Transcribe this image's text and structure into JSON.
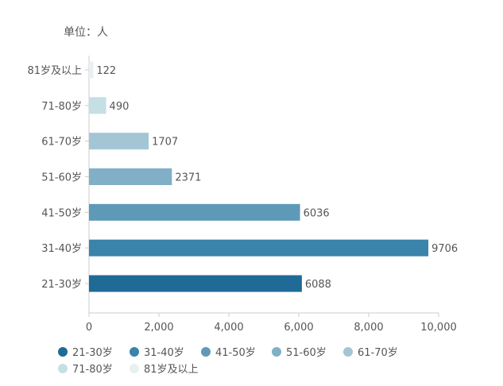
{
  "unit_label": "单位：人",
  "chart_data": {
    "type": "bar",
    "orientation": "horizontal",
    "categories": [
      "21-30岁",
      "31-40岁",
      "41-50岁",
      "51-60岁",
      "61-70岁",
      "71-80岁",
      "81岁及以上"
    ],
    "values": [
      6088,
      9706,
      6036,
      2371,
      1707,
      490,
      122
    ],
    "colors": [
      "#1f6a97",
      "#3a83aa",
      "#5f99b8",
      "#81afc8",
      "#a3c6d5",
      "#c6dfe4",
      "#e7f1f2"
    ],
    "xlim": [
      0,
      10000
    ],
    "xticks": [
      0,
      2000,
      4000,
      6000,
      8000,
      10000
    ],
    "xtick_labels": [
      "0",
      "2,000",
      "4,000",
      "6,000",
      "8,000",
      "10,000"
    ],
    "data_labels": [
      "6088",
      "9706",
      "6036",
      "2371",
      "1707",
      "490",
      "122"
    ],
    "legend": {
      "position": "bottom",
      "entries": [
        "21-30岁",
        "31-40岁",
        "41-50岁",
        "51-60岁",
        "61-70岁",
        "71-80岁",
        "81岁及以上"
      ]
    },
    "grid": false
  }
}
